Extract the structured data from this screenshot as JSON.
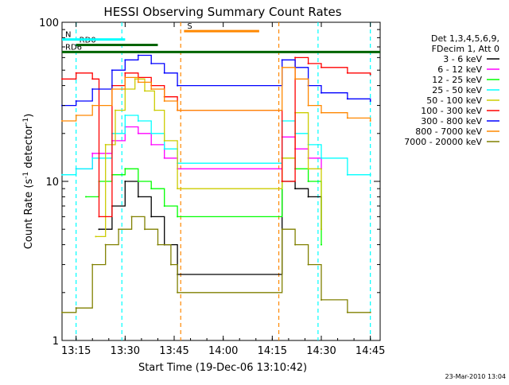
{
  "chart_data": {
    "type": "line",
    "title": "HESSI Observing Summary Count Rates",
    "xlabel": "Start Time (19-Dec-06 13:10:42)",
    "ylabel": "Count Rate (s⁻¹ detector⁻¹)",
    "ylabel_main": "Count Rate (s",
    "ylabel_sup1": "-1",
    "ylabel_mid": " detector",
    "ylabel_sup2": "-1",
    "ylabel_end": ")",
    "y_scale": "log",
    "xlim": [
      "13:10:42",
      "14:48:00"
    ],
    "ylim": [
      1,
      100
    ],
    "x_ticks": [
      "13:15",
      "13:30",
      "13:45",
      "14:00",
      "14:15",
      "14:30",
      "14:45"
    ],
    "y_ticks": [
      "1",
      "10",
      "100"
    ],
    "legend_position": "right",
    "legend_header": [
      "Det 1,3,4,5,6,9,",
      "FDecim 1, Att 0"
    ],
    "series": [
      {
        "name": "3 - 6 keV",
        "color": "#000000",
        "points": [
          [
            "13:22",
            5
          ],
          [
            "13:26",
            7
          ],
          [
            "13:30",
            10
          ],
          [
            "13:34",
            8
          ],
          [
            "13:38",
            6
          ],
          [
            "13:42",
            4
          ],
          [
            "13:46",
            2.6
          ],
          [
            "14:18",
            10
          ],
          [
            "14:22",
            9
          ],
          [
            "14:26",
            8
          ],
          [
            "14:30",
            5
          ]
        ]
      },
      {
        "name": "6 - 12 keV",
        "color": "#ff00ff",
        "points": [
          [
            "13:15",
            12
          ],
          [
            "13:20",
            15
          ],
          [
            "13:26",
            18
          ],
          [
            "13:30",
            22
          ],
          [
            "13:34",
            20
          ],
          [
            "13:38",
            17
          ],
          [
            "13:42",
            14
          ],
          [
            "13:46",
            12
          ],
          [
            "14:18",
            19
          ],
          [
            "14:22",
            16
          ],
          [
            "14:26",
            14
          ],
          [
            "14:30",
            12
          ]
        ]
      },
      {
        "name": "12 - 25 keV",
        "color": "#00ff00",
        "points": [
          [
            "13:18",
            8
          ],
          [
            "13:22",
            10
          ],
          [
            "13:26",
            11
          ],
          [
            "13:30",
            12
          ],
          [
            "13:34",
            10
          ],
          [
            "13:38",
            9
          ],
          [
            "13:42",
            7
          ],
          [
            "13:46",
            6
          ],
          [
            "14:18",
            14
          ],
          [
            "14:22",
            12
          ],
          [
            "14:26",
            10
          ],
          [
            "14:30",
            4
          ]
        ]
      },
      {
        "name": "25 - 50 keV",
        "color": "#00ffff",
        "points": [
          [
            "13:10:42",
            11
          ],
          [
            "13:15",
            12
          ],
          [
            "13:20",
            14
          ],
          [
            "13:26",
            20
          ],
          [
            "13:30",
            26
          ],
          [
            "13:34",
            24
          ],
          [
            "13:38",
            20
          ],
          [
            "13:42",
            16
          ],
          [
            "13:46",
            13
          ],
          [
            "14:18",
            24
          ],
          [
            "14:22",
            20
          ],
          [
            "14:26",
            17
          ],
          [
            "14:30",
            14
          ],
          [
            "14:38",
            11
          ],
          [
            "14:45",
            11
          ]
        ]
      },
      {
        "name": "50 - 100 keV",
        "color": "#cccc00",
        "points": [
          [
            "13:21",
            4.5
          ],
          [
            "13:24",
            17
          ],
          [
            "13:27",
            28
          ],
          [
            "13:30",
            38
          ],
          [
            "13:33",
            44
          ],
          [
            "13:36",
            37
          ],
          [
            "13:39",
            28
          ],
          [
            "13:42",
            18
          ],
          [
            "13:46",
            9
          ],
          [
            "14:18",
            14
          ],
          [
            "14:22",
            27
          ],
          [
            "14:26",
            12
          ],
          [
            "14:30",
            5
          ]
        ]
      },
      {
        "name": "100 - 300 keV",
        "color": "#ff0000",
        "points": [
          [
            "13:10:42",
            44
          ],
          [
            "13:15",
            48
          ],
          [
            "13:20",
            44
          ],
          [
            "13:22",
            6
          ],
          [
            "13:26",
            40
          ],
          [
            "13:30",
            48
          ],
          [
            "13:34",
            45
          ],
          [
            "13:38",
            40
          ],
          [
            "13:42",
            34
          ],
          [
            "13:46",
            28
          ],
          [
            "14:18",
            10
          ],
          [
            "14:22",
            60
          ],
          [
            "14:26",
            55
          ],
          [
            "14:30",
            52
          ],
          [
            "14:38",
            48
          ],
          [
            "14:45",
            47
          ]
        ]
      },
      {
        "name": "300 - 800 keV",
        "color": "#0000ff",
        "points": [
          [
            "13:10:42",
            30
          ],
          [
            "13:15",
            32
          ],
          [
            "13:20",
            38
          ],
          [
            "13:26",
            50
          ],
          [
            "13:30",
            58
          ],
          [
            "13:34",
            62
          ],
          [
            "13:38",
            55
          ],
          [
            "13:42",
            48
          ],
          [
            "13:46",
            40
          ],
          [
            "14:18",
            58
          ],
          [
            "14:22",
            52
          ],
          [
            "14:26",
            40
          ],
          [
            "14:30",
            36
          ],
          [
            "14:38",
            33
          ],
          [
            "14:45",
            32
          ]
        ]
      },
      {
        "name": "800 - 7000 keV",
        "color": "#ff8800",
        "points": [
          [
            "13:10:42",
            24
          ],
          [
            "13:15",
            26
          ],
          [
            "13:20",
            30
          ],
          [
            "13:26",
            38
          ],
          [
            "13:30",
            45
          ],
          [
            "13:34",
            42
          ],
          [
            "13:38",
            38
          ],
          [
            "13:42",
            32
          ],
          [
            "13:46",
            28
          ],
          [
            "14:18",
            52
          ],
          [
            "14:22",
            44
          ],
          [
            "14:26",
            30
          ],
          [
            "14:30",
            27
          ],
          [
            "14:38",
            25
          ],
          [
            "14:45",
            24
          ]
        ]
      },
      {
        "name": "7000 - 20000 keV",
        "color": "#808000",
        "points": [
          [
            "13:10:42",
            1.5
          ],
          [
            "13:15",
            1.6
          ],
          [
            "13:20",
            3
          ],
          [
            "13:24",
            4
          ],
          [
            "13:28",
            5
          ],
          [
            "13:32",
            6
          ],
          [
            "13:36",
            5
          ],
          [
            "13:40",
            4
          ],
          [
            "13:44",
            3
          ],
          [
            "13:46",
            2
          ],
          [
            "14:18",
            5
          ],
          [
            "14:22",
            4
          ],
          [
            "14:26",
            3
          ],
          [
            "14:30",
            1.8
          ],
          [
            "14:38",
            1.5
          ],
          [
            "14:45",
            1.5
          ]
        ]
      }
    ],
    "attenuator_bars": [
      {
        "label": "RD6",
        "color": "#006400",
        "start": "13:10:42",
        "end": "14:48:00",
        "level": 65
      },
      {
        "label": "RD0",
        "color": "#006400",
        "start": "13:15",
        "end": "13:40",
        "level": 72
      },
      {
        "label": "N",
        "color": "#00ffff",
        "start": "13:10:42",
        "end": "13:30",
        "level": 78
      },
      {
        "label": "S",
        "color": "#ff8800",
        "start": "13:48",
        "end": "14:11",
        "level": 88
      }
    ],
    "saa_lines_cyan": [
      "13:15",
      "13:29",
      "14:29",
      "14:45"
    ],
    "saa_lines_orange": [
      "13:47",
      "14:17"
    ],
    "footer_date": "23-Mar-2010 13:04"
  }
}
